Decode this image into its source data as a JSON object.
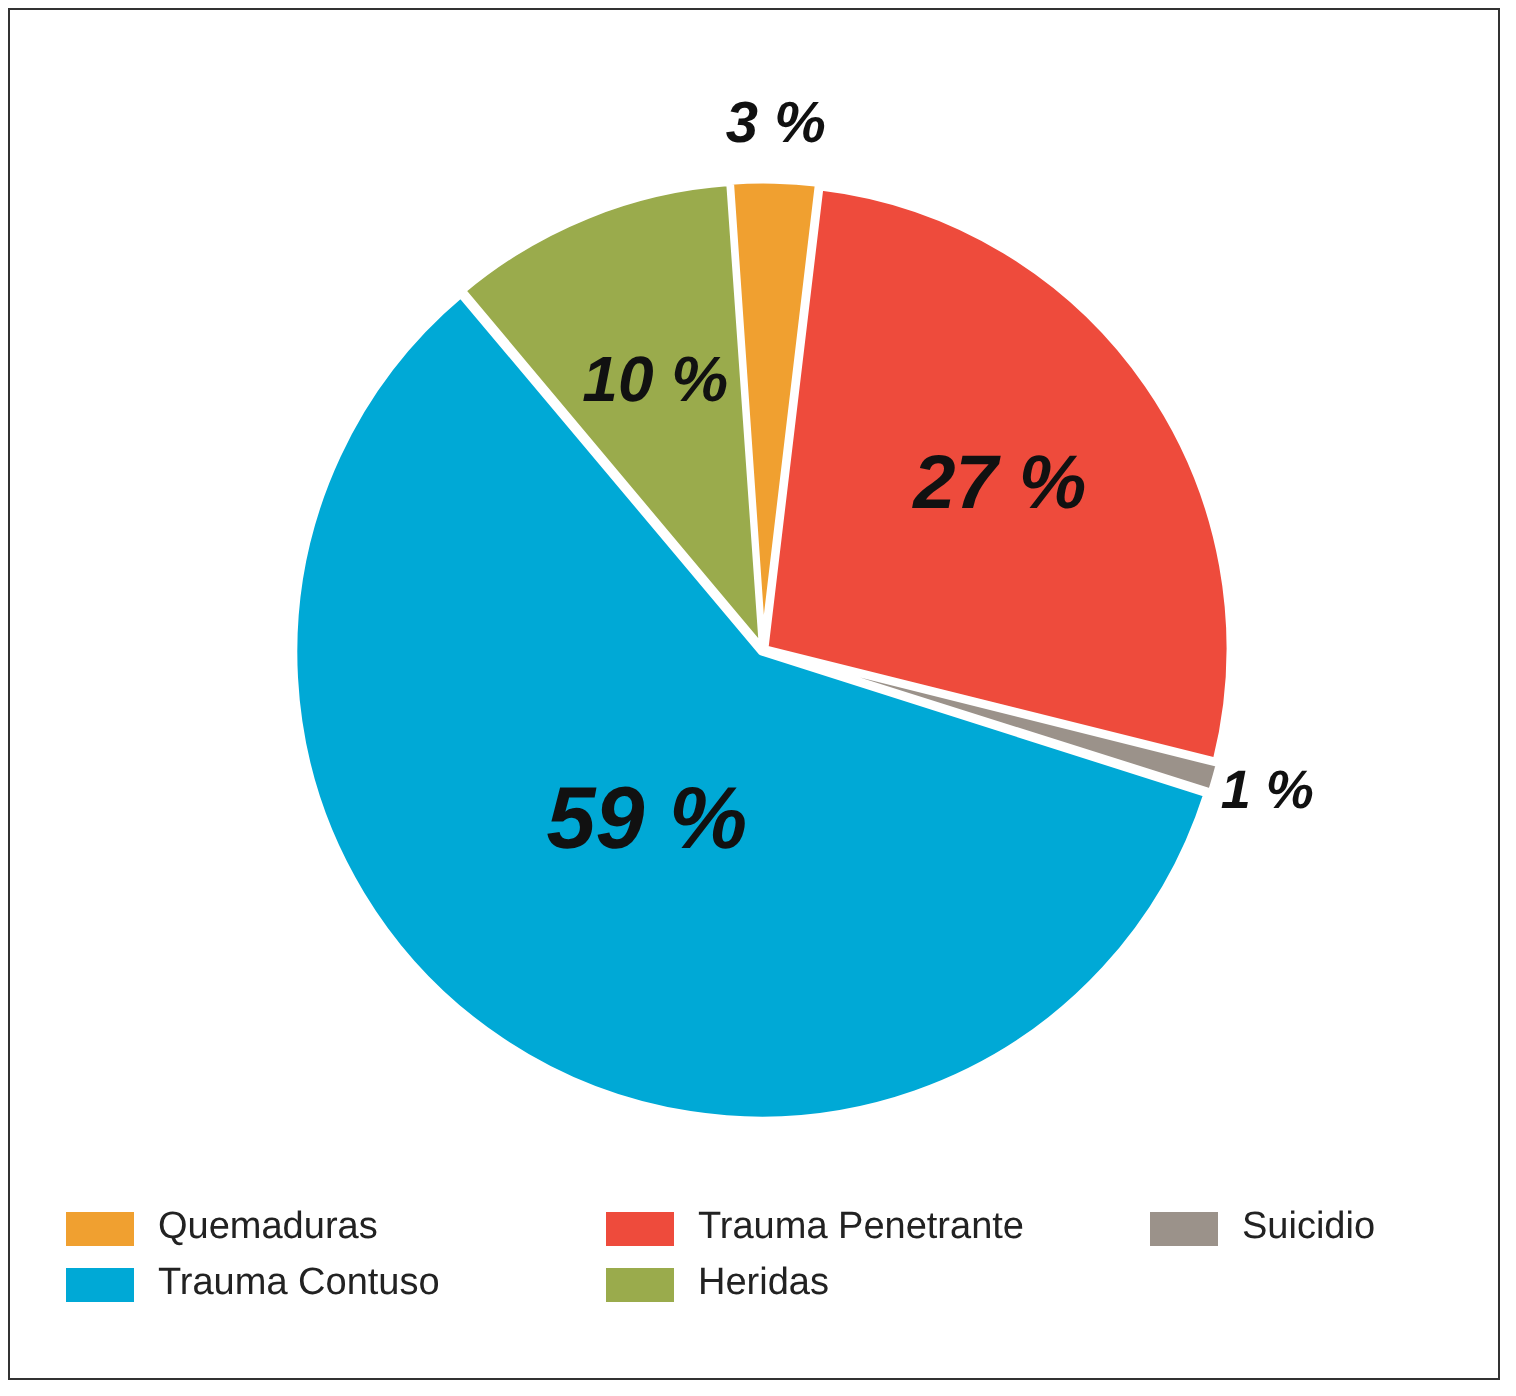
{
  "chart_data": {
    "type": "pie",
    "categories": [
      "Quemaduras",
      "Trauma Penetrante",
      "Suicidio",
      "Trauma Contuso",
      "Heridas"
    ],
    "values": [
      3,
      27,
      1,
      59,
      10
    ],
    "colors": [
      "#f0a030",
      "#ee4b3c",
      "#9b928a",
      "#00a9d6",
      "#9aab4c"
    ],
    "value_labels": [
      "3 %",
      "27 %",
      "1 %",
      "59 %",
      "10 %"
    ],
    "legend": "bottom"
  }
}
